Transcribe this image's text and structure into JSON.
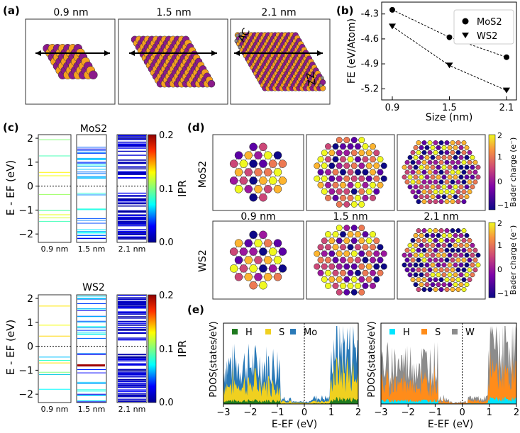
{
  "panels": {
    "a": {
      "label": "(a)",
      "sizes": [
        "0.9 nm",
        "1.5 nm",
        "2.1 nm"
      ],
      "edge_ac": "AC",
      "edge_zz": "ZZ"
    },
    "b": {
      "label": "(b)"
    },
    "c": {
      "label": "(c)",
      "top_title": "MoS2",
      "bottom_title": "WS2",
      "ylabel": "E - EF (eV)",
      "cbar_label": "IPR",
      "cbar_ticks": [
        "0.2",
        "0.1",
        "0.0"
      ],
      "yticks": [
        "2",
        "1",
        "0",
        "−1",
        "−2"
      ],
      "sizes": [
        "0.9 nm",
        "1.5 nm",
        "2.1 nm"
      ]
    },
    "d": {
      "label": "(d)",
      "row_mos2": "MoS2",
      "row_ws2": "WS2",
      "sizes": [
        "0.9 nm",
        "1.5 nm",
        "2.1 nm"
      ],
      "cbar_label": "Bader charge (e⁻)",
      "cbar_ticks": [
        "2",
        "1",
        "0",
        "−1"
      ]
    },
    "e": {
      "label": "(e)",
      "ylabel": "PDOS(states/eV)",
      "xlabel": "E-EF (eV)",
      "xticks": [
        "−3",
        "−2",
        "−1",
        "0",
        "1",
        "2"
      ],
      "legend_mos2": [
        "H",
        "S",
        "Mo"
      ],
      "legend_ws2": [
        "H",
        "S",
        "W"
      ]
    }
  },
  "colors": {
    "mo": "#8B1A8B",
    "s": "#F5A020",
    "h": "#888888",
    "h_pdos_mo": "#1f7a1f",
    "s_pdos_mo": "#F0D020",
    "mo_pdos": "#2a7ab8",
    "h_pdos_w": "#00e5ff",
    "s_pdos_w": "#ff8c1a",
    "w_pdos": "#8c8c8c"
  },
  "chart_data": {
    "type": "line",
    "title": "",
    "xlabel": "Size (nm)",
    "ylabel": "FE (eV/Atom)",
    "categories": [
      "0.9",
      "1.5",
      "2.1"
    ],
    "x": [
      0.9,
      1.5,
      2.1
    ],
    "ylim": [
      -5.3,
      -4.2
    ],
    "yticks": [
      "-4.3",
      "-4.6",
      "-4.9",
      "-5.2"
    ],
    "series": [
      {
        "name": "MoS2",
        "values": [
          -4.25,
          -4.58,
          -4.82
        ]
      },
      {
        "name": "WS2",
        "values": [
          -4.45,
          -4.92,
          -5.22
        ]
      }
    ],
    "legend": "top-right"
  }
}
